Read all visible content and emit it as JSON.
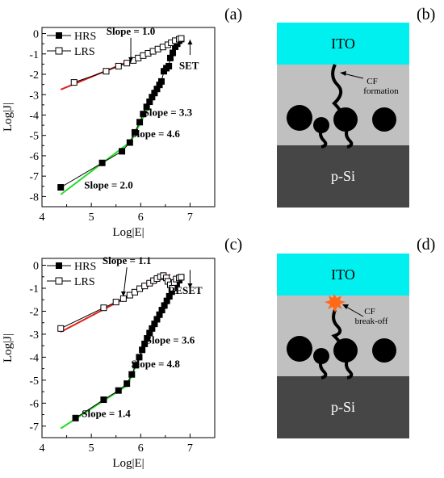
{
  "chart_data": [
    {
      "panel": "(a)",
      "type": "scatter",
      "xlabel": "Log|E|",
      "ylabel": "Log|J|",
      "xlim": [
        4,
        7.5
      ],
      "ylim": [
        -8.5,
        0.3
      ],
      "xticks": [
        "4",
        "5",
        "6",
        "7"
      ],
      "yticks": [
        "0",
        "-1",
        "-2",
        "-3",
        "-4",
        "-5",
        "-6",
        "-7",
        "-8"
      ],
      "legend_position": "top-left",
      "series": [
        {
          "name": "HRS",
          "marker": "filled-square",
          "points": [
            [
              4.38,
              -7.55
            ],
            [
              5.22,
              -6.35
            ],
            [
              5.62,
              -5.78
            ],
            [
              5.78,
              -5.35
            ],
            [
              5.88,
              -4.85
            ],
            [
              5.98,
              -4.35
            ],
            [
              6.05,
              -3.95
            ],
            [
              6.12,
              -3.6
            ],
            [
              6.18,
              -3.35
            ],
            [
              6.23,
              -3.12
            ],
            [
              6.28,
              -2.92
            ],
            [
              6.33,
              -2.72
            ],
            [
              6.38,
              -2.52
            ],
            [
              6.42,
              -2.35
            ],
            [
              6.47,
              -1.85
            ],
            [
              6.52,
              -1.7
            ],
            [
              6.57,
              -1.6
            ],
            [
              6.6,
              -1.2
            ],
            [
              6.65,
              -0.95
            ],
            [
              6.7,
              -0.65
            ],
            [
              6.74,
              -0.5
            ],
            [
              6.78,
              -0.35
            ],
            [
              6.82,
              -0.27
            ]
          ]
        },
        {
          "name": "LRS",
          "marker": "open-square",
          "points": [
            [
              4.65,
              -2.4
            ],
            [
              5.3,
              -1.85
            ],
            [
              5.55,
              -1.6
            ],
            [
              5.72,
              -1.45
            ],
            [
              5.85,
              -1.32
            ],
            [
              5.95,
              -1.2
            ],
            [
              6.05,
              -1.08
            ],
            [
              6.15,
              -0.97
            ],
            [
              6.25,
              -0.87
            ],
            [
              6.35,
              -0.76
            ],
            [
              6.45,
              -0.66
            ],
            [
              6.55,
              -0.55
            ],
            [
              6.62,
              -0.45
            ],
            [
              6.7,
              -0.35
            ],
            [
              6.78,
              -0.28
            ],
            [
              6.82,
              -0.24
            ]
          ]
        }
      ],
      "fit_lines": [
        {
          "color": "#e0201b",
          "from": [
            4.38,
            -2.75
          ],
          "to": [
            6.82,
            -0.3
          ]
        },
        {
          "color": "#22dd22",
          "from": [
            4.38,
            -7.9
          ],
          "to": [
            5.8,
            -5.3
          ]
        },
        {
          "color": "#22dd22",
          "from": [
            5.78,
            -5.4
          ],
          "to": [
            6.15,
            -3.65
          ]
        },
        {
          "color": "#22dd22",
          "from": [
            6.1,
            -3.7
          ],
          "to": [
            6.45,
            -2.3
          ]
        }
      ],
      "annotations": [
        {
          "text": "Slope = 1.0",
          "at": [
            5.8,
            -0.05
          ],
          "arrow_to": [
            5.8,
            -1.4
          ]
        },
        {
          "text": "SET",
          "at": [
            6.98,
            -1.75
          ],
          "arrow_from": [
            7.0,
            -1.05
          ],
          "arrow_to": [
            7.0,
            -0.3
          ]
        },
        {
          "text": "Slope = 3.3",
          "at": [
            6.55,
            -4.05
          ]
        },
        {
          "text": "Slope = 4.6",
          "at": [
            6.3,
            -5.1
          ]
        },
        {
          "text": "Slope = 2.0",
          "at": [
            5.35,
            -7.6
          ]
        }
      ]
    },
    {
      "panel": "(c)",
      "type": "scatter",
      "xlabel": "Log|E|",
      "ylabel": "Log|J|",
      "xlim": [
        4,
        7.5
      ],
      "ylim": [
        -7.5,
        0.3
      ],
      "xticks": [
        "4",
        "5",
        "6",
        "7"
      ],
      "yticks": [
        "0",
        "-1",
        "-2",
        "-3",
        "-4",
        "-5",
        "-6",
        "-7"
      ],
      "legend_position": "top-left",
      "series": [
        {
          "name": "HRS",
          "marker": "filled-square",
          "points": [
            [
              4.68,
              -6.65
            ],
            [
              5.25,
              -5.85
            ],
            [
              5.55,
              -5.45
            ],
            [
              5.72,
              -5.15
            ],
            [
              5.82,
              -4.75
            ],
            [
              5.9,
              -4.35
            ],
            [
              5.97,
              -4.0
            ],
            [
              6.03,
              -3.68
            ],
            [
              6.08,
              -3.42
            ],
            [
              6.13,
              -3.18
            ],
            [
              6.18,
              -2.95
            ],
            [
              6.23,
              -2.75
            ],
            [
              6.28,
              -2.55
            ],
            [
              6.33,
              -2.35
            ],
            [
              6.38,
              -2.15
            ],
            [
              6.43,
              -1.95
            ],
            [
              6.48,
              -1.75
            ],
            [
              6.53,
              -1.55
            ],
            [
              6.58,
              -1.35
            ],
            [
              6.63,
              -1.15
            ],
            [
              6.68,
              -0.98
            ],
            [
              6.73,
              -0.8
            ],
            [
              6.78,
              -0.65
            ],
            [
              6.82,
              -0.52
            ]
          ]
        },
        {
          "name": "LRS",
          "marker": "open-square",
          "points": [
            [
              4.38,
              -2.75
            ],
            [
              5.25,
              -1.85
            ],
            [
              5.5,
              -1.6
            ],
            [
              5.65,
              -1.45
            ],
            [
              5.78,
              -1.3
            ],
            [
              5.88,
              -1.17
            ],
            [
              5.98,
              -1.02
            ],
            [
              6.08,
              -0.9
            ],
            [
              6.18,
              -0.78
            ],
            [
              6.26,
              -0.67
            ],
            [
              6.33,
              -0.58
            ],
            [
              6.4,
              -0.5
            ],
            [
              6.46,
              -0.45
            ],
            [
              6.52,
              -0.55
            ],
            [
              6.55,
              -0.7
            ],
            [
              6.6,
              -0.85
            ],
            [
              6.64,
              -1.0
            ],
            [
              6.68,
              -0.75
            ],
            [
              6.72,
              -0.6
            ],
            [
              6.78,
              -0.55
            ],
            [
              6.82,
              -0.52
            ]
          ]
        }
      ],
      "fit_lines": [
        {
          "color": "#e0201b",
          "from": [
            4.38,
            -2.9
          ],
          "to": [
            6.6,
            -0.4
          ]
        },
        {
          "color": "#22dd22",
          "from": [
            4.38,
            -7.1
          ],
          "to": [
            5.75,
            -5.2
          ]
        },
        {
          "color": "#22dd22",
          "from": [
            5.72,
            -5.3
          ],
          "to": [
            6.13,
            -3.2
          ]
        },
        {
          "color": "#22dd22",
          "from": [
            6.08,
            -3.5
          ],
          "to": [
            6.82,
            -0.52
          ]
        }
      ],
      "annotations": [
        {
          "text": "Slope = 1.1",
          "at": [
            5.72,
            0.05
          ],
          "arrow_to": [
            5.65,
            -1.35
          ]
        },
        {
          "text": "RESET",
          "at": [
            6.9,
            -1.25
          ],
          "arrow_from": [
            7.0,
            -0.2
          ],
          "arrow_to": [
            7.0,
            -1.0
          ]
        },
        {
          "text": "Slope = 3.6",
          "at": [
            6.6,
            -3.4
          ]
        },
        {
          "text": "Slope = 4.8",
          "at": [
            6.3,
            -4.45
          ]
        },
        {
          "text": "Slope = 1.4",
          "at": [
            5.3,
            -6.6
          ]
        }
      ]
    }
  ],
  "diagrams": [
    {
      "panel": "(b)",
      "top_label": "ITO",
      "bottom_label": "p-Si",
      "cf_label_line1": "CF",
      "cf_label_line2": "formation",
      "colors": {
        "ito": "#00f0f0",
        "oxide": "#c0c0c0",
        "si": "#464646",
        "filament": "#000000"
      }
    },
    {
      "panel": "(d)",
      "top_label": "ITO",
      "bottom_label": "p-Si",
      "cf_label_line1": "CF",
      "cf_label_line2": "break-off",
      "colors": {
        "ito": "#00f0f0",
        "oxide": "#c0c0c0",
        "si": "#464646",
        "filament": "#000000",
        "spark": "#ff6a1a"
      }
    }
  ]
}
